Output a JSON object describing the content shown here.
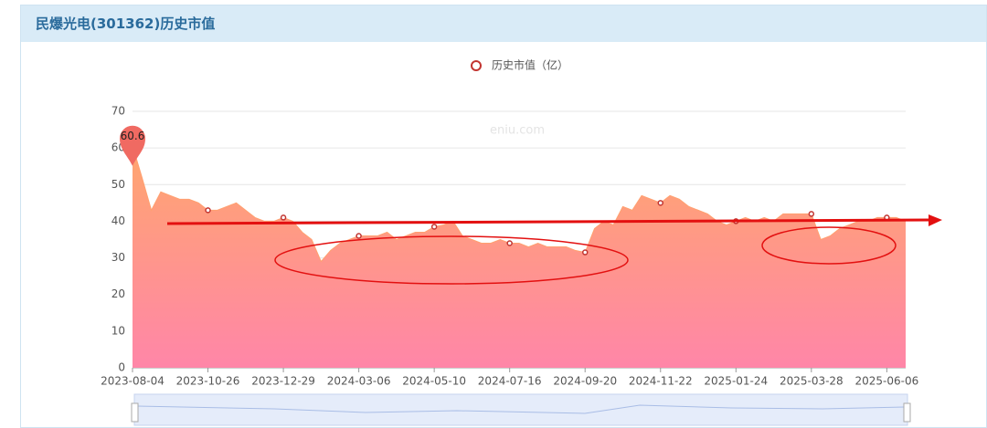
{
  "chart_data": {
    "type": "area",
    "title": "民爆光电(301362)历史市值",
    "watermark": "eniu.com",
    "categories": [
      "2023-08-04",
      null,
      null,
      null,
      null,
      null,
      null,
      null,
      "2023-10-26",
      null,
      null,
      null,
      null,
      null,
      null,
      null,
      "2023-12-29",
      null,
      null,
      null,
      null,
      null,
      null,
      null,
      "2024-03-06",
      null,
      null,
      null,
      null,
      null,
      null,
      null,
      "2024-05-10",
      null,
      null,
      null,
      null,
      null,
      null,
      null,
      "2024-07-16",
      null,
      null,
      null,
      null,
      null,
      null,
      null,
      "2024-09-20",
      null,
      null,
      null,
      null,
      null,
      null,
      null,
      "2024-11-22",
      null,
      null,
      null,
      null,
      null,
      null,
      null,
      "2025-01-24",
      null,
      null,
      null,
      null,
      null,
      null,
      null,
      "2025-03-28",
      null,
      null,
      null,
      null,
      null,
      null,
      null,
      "2025-06-06",
      null,
      null
    ],
    "series": [
      {
        "name": "历史市值（亿）",
        "color": "#c23531",
        "values": [
          60.6,
          52,
          43,
          48,
          47,
          46,
          46,
          45,
          43,
          43,
          44,
          45,
          43,
          41,
          40,
          40,
          41,
          40,
          37,
          35,
          29,
          32,
          34,
          35,
          36,
          36,
          36,
          37,
          35,
          36,
          37,
          37,
          38.5,
          39,
          40,
          36,
          35,
          34,
          34,
          35,
          34,
          34,
          33,
          34,
          33,
          33,
          33,
          32,
          31.5,
          38,
          40,
          39,
          44,
          43,
          47,
          46,
          45,
          47,
          46,
          44,
          43,
          42,
          40,
          39,
          40,
          41,
          40,
          41,
          40,
          42,
          42,
          42,
          42,
          35,
          36,
          38,
          39,
          40,
          40,
          41,
          41,
          41,
          40
        ]
      }
    ],
    "ylim": [
      0,
      70
    ],
    "yticks": [
      0,
      10,
      20,
      30,
      40,
      50,
      60,
      70
    ],
    "grid": true,
    "max_point": 60.6
  }
}
